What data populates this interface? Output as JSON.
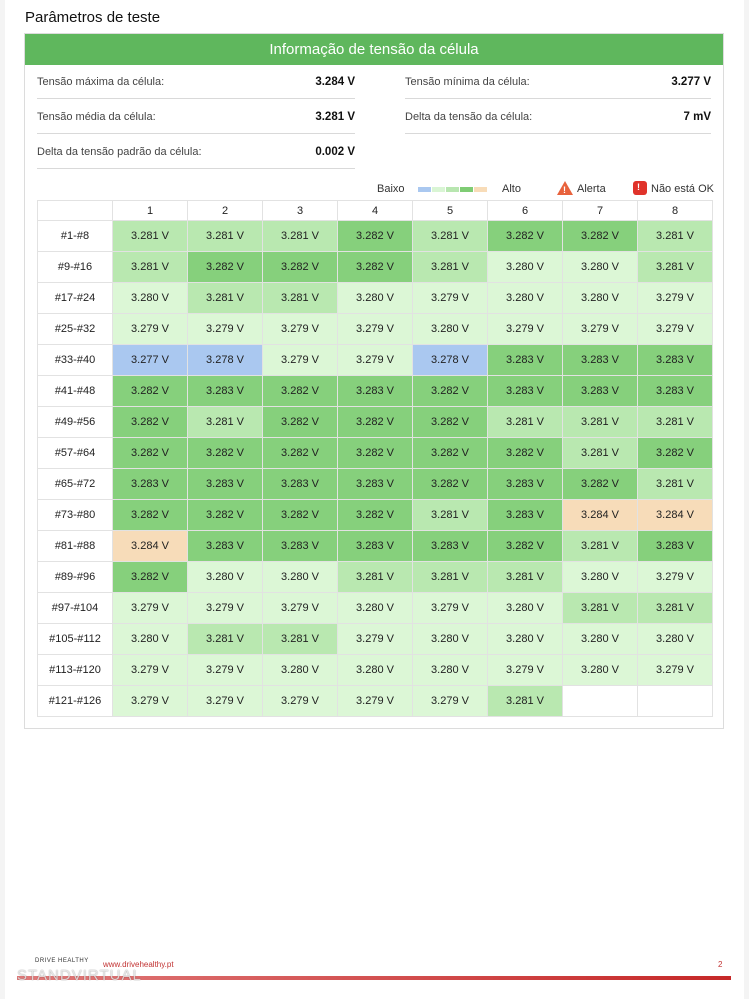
{
  "section_title": "Parâmetros de teste",
  "card_title": "Informação de tensão da célula",
  "stats": [
    {
      "label": "Tensão máxima da célula:",
      "value": "3.284 V"
    },
    {
      "label": "Tensão mínima da célula:",
      "value": "3.277 V"
    },
    {
      "label": "Tensão média da célula:",
      "value": "3.281 V"
    },
    {
      "label": "Delta da tensão da célula:",
      "value": "7 mV"
    },
    {
      "label": "Delta da tensão padrão da célula:",
      "value": "0.002 V"
    }
  ],
  "legend": {
    "low": "Baixo",
    "high": "Alto",
    "alert": "Alerta",
    "not_ok": "Não está OK",
    "alert_icon": "warning-triangle-icon",
    "not_ok_icon": "alarm-light-icon",
    "scale_colors": [
      "#aac8f0",
      "#d9f5d4",
      "#b8e6b0",
      "#7fcc74",
      "#f8dcb8"
    ]
  },
  "colors": {
    "header": "#5fb75d",
    "cell_3277": "#aac8f0",
    "cell_3278": "#aac8f0",
    "cell_3279": "#dcf7d6",
    "cell_3280": "#dcf7d6",
    "cell_3281": "#b9e8b0",
    "cell_3282": "#86d07c",
    "cell_3283": "#86d07c",
    "cell_3284": "#f7dcb9",
    "footer_red": "#c62828"
  },
  "table": {
    "columns": [
      "1",
      "2",
      "3",
      "4",
      "5",
      "6",
      "7",
      "8"
    ],
    "rows": [
      {
        "label": "#1-#8",
        "values": [
          "3.281 V",
          "3.281 V",
          "3.281 V",
          "3.282 V",
          "3.281 V",
          "3.282 V",
          "3.282 V",
          "3.281 V"
        ]
      },
      {
        "label": "#9-#16",
        "values": [
          "3.281 V",
          "3.282 V",
          "3.282 V",
          "3.282 V",
          "3.281 V",
          "3.280 V",
          "3.280 V",
          "3.281 V"
        ]
      },
      {
        "label": "#17-#24",
        "values": [
          "3.280 V",
          "3.281 V",
          "3.281 V",
          "3.280 V",
          "3.279 V",
          "3.280 V",
          "3.280 V",
          "3.279 V"
        ]
      },
      {
        "label": "#25-#32",
        "values": [
          "3.279 V",
          "3.279 V",
          "3.279 V",
          "3.279 V",
          "3.280 V",
          "3.279 V",
          "3.279 V",
          "3.279 V"
        ]
      },
      {
        "label": "#33-#40",
        "values": [
          "3.277 V",
          "3.278 V",
          "3.279 V",
          "3.279 V",
          "3.278 V",
          "3.283 V",
          "3.283 V",
          "3.283 V"
        ]
      },
      {
        "label": "#41-#48",
        "values": [
          "3.282 V",
          "3.283 V",
          "3.282 V",
          "3.283 V",
          "3.282 V",
          "3.283 V",
          "3.283 V",
          "3.283 V"
        ]
      },
      {
        "label": "#49-#56",
        "values": [
          "3.282 V",
          "3.281 V",
          "3.282 V",
          "3.282 V",
          "3.282 V",
          "3.281 V",
          "3.281 V",
          "3.281 V"
        ]
      },
      {
        "label": "#57-#64",
        "values": [
          "3.282 V",
          "3.282 V",
          "3.282 V",
          "3.282 V",
          "3.282 V",
          "3.282 V",
          "3.281 V",
          "3.282 V"
        ]
      },
      {
        "label": "#65-#72",
        "values": [
          "3.283 V",
          "3.283 V",
          "3.283 V",
          "3.283 V",
          "3.282 V",
          "3.283 V",
          "3.282 V",
          "3.281 V"
        ]
      },
      {
        "label": "#73-#80",
        "values": [
          "3.282 V",
          "3.282 V",
          "3.282 V",
          "3.282 V",
          "3.281 V",
          "3.283 V",
          "3.284 V",
          "3.284 V"
        ]
      },
      {
        "label": "#81-#88",
        "values": [
          "3.284 V",
          "3.283 V",
          "3.283 V",
          "3.283 V",
          "3.283 V",
          "3.282 V",
          "3.281 V",
          "3.283 V"
        ]
      },
      {
        "label": "#89-#96",
        "values": [
          "3.282 V",
          "3.280 V",
          "3.280 V",
          "3.281 V",
          "3.281 V",
          "3.281 V",
          "3.280 V",
          "3.279 V"
        ]
      },
      {
        "label": "#97-#104",
        "values": [
          "3.279 V",
          "3.279 V",
          "3.279 V",
          "3.280 V",
          "3.279 V",
          "3.280 V",
          "3.281 V",
          "3.281 V"
        ]
      },
      {
        "label": "#105-#112",
        "values": [
          "3.280 V",
          "3.281 V",
          "3.281 V",
          "3.279 V",
          "3.280 V",
          "3.280 V",
          "3.280 V",
          "3.280 V"
        ]
      },
      {
        "label": "#113-#120",
        "values": [
          "3.279 V",
          "3.279 V",
          "3.280 V",
          "3.280 V",
          "3.280 V",
          "3.279 V",
          "3.280 V",
          "3.279 V"
        ]
      },
      {
        "label": "#121-#126",
        "values": [
          "3.279 V",
          "3.279 V",
          "3.279 V",
          "3.279 V",
          "3.279 V",
          "3.281 V",
          "",
          ""
        ]
      }
    ]
  },
  "footer": {
    "logo_text": "DRIVE HEALTHY",
    "url": "www.drivehealthy.pt",
    "page_number": "2",
    "watermark": "STANDVIRTUAL"
  }
}
